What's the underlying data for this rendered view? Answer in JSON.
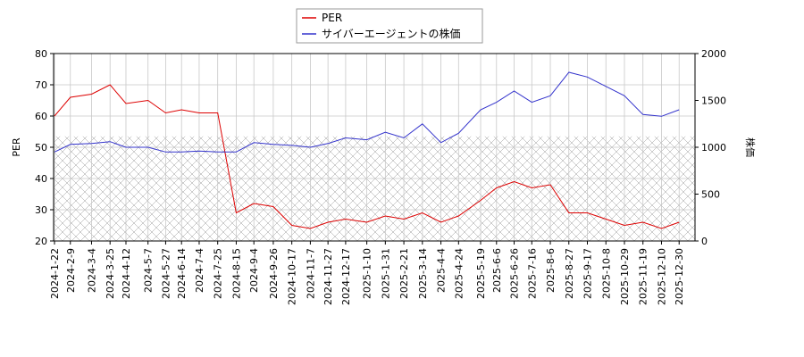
{
  "chart_data": {
    "type": "line",
    "legend": "upper center",
    "grid": true,
    "y_label": "PER",
    "y2_label": "株価",
    "hatch_band": [
      20,
      53.5
    ],
    "x": [
      "2024-1-22",
      "2024-2-9",
      "2024-3-4",
      "2024-3-25",
      "2024-4-12",
      "2024-5-7",
      "2024-5-27",
      "2024-6-14",
      "2024-7-4",
      "2024-7-25",
      "2024-8-15",
      "2024-9-4",
      "2024-9-26",
      "2024-10-17",
      "2024-11-7",
      "2024-11-27",
      "2024-12-17",
      "2025-1-10",
      "2025-1-31",
      "2025-2-21",
      "2025-3-14",
      "2025-4-4",
      "2025-4-24",
      "2025-5-19",
      "2025-6-6",
      "2025-6-26",
      "2025-7-16",
      "2025-8-6",
      "2025-8-27",
      "2025-9-17",
      "2025-10-8",
      "2025-10-29",
      "2025-11-19",
      "2025-12-10",
      "2025-12-30"
    ],
    "xlim": [
      "2024-1-21",
      "2026-1-17"
    ],
    "xticks": [
      "2024-1-22",
      "2024-2-9",
      "2024-3-4",
      "2024-3-25",
      "2024-4-12",
      "2024-5-7",
      "2024-5-27",
      "2024-6-14",
      "2024-7-4",
      "2024-7-25",
      "2024-8-15",
      "2024-9-4",
      "2024-9-26",
      "2024-10-17",
      "2024-11-7",
      "2024-11-27",
      "2024-12-17",
      "2025-1-10",
      "2025-1-31",
      "2025-2-21",
      "2025-3-14",
      "2025-4-4",
      "2025-4-24",
      "2025-5-19",
      "2025-6-6",
      "2025-6-26",
      "2025-7-16",
      "2025-8-6",
      "2025-8-27",
      "2025-9-17",
      "2025-10-8",
      "2025-10-29",
      "2025-11-19",
      "2025-12-10",
      "2025-12-30"
    ],
    "ylim": [
      20,
      80
    ],
    "yticks": [
      20,
      30,
      40,
      50,
      60,
      70,
      80
    ],
    "y2lim": [
      0,
      2000
    ],
    "y2ticks": [
      0,
      500,
      1000,
      1500,
      2000
    ],
    "series": [
      {
        "name": "PER",
        "color": "#dd0000",
        "values": [
          60,
          66,
          67,
          70,
          64,
          65,
          61,
          62,
          61,
          61,
          29,
          32,
          31,
          25,
          24,
          26,
          27,
          26,
          28,
          27,
          29,
          26,
          28,
          33,
          37,
          39,
          37,
          38,
          29,
          29,
          27,
          25,
          26,
          24,
          26
        ]
      },
      {
        "name": "サイバーエージェントの株価",
        "color": "#3333cc",
        "axis": "y2",
        "values": [
          950,
          1030,
          1040,
          1060,
          1000,
          1000,
          950,
          950,
          960,
          950,
          950,
          1050,
          1030,
          1020,
          1000,
          1040,
          1100,
          1080,
          1160,
          1100,
          1250,
          1050,
          1150,
          1400,
          1480,
          1600,
          1480,
          1550,
          1800,
          1750,
          1650,
          1550,
          1350,
          1330,
          1400
        ]
      }
    ]
  }
}
